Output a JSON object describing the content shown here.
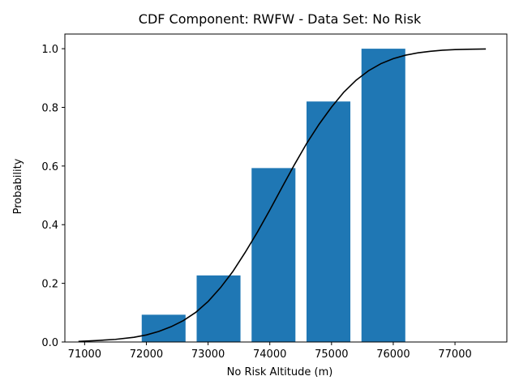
{
  "chart_data": {
    "type": "bar",
    "title": "CDF Component: RWFW - Data Set: No Risk",
    "xlabel": "No Risk Altitude (m)",
    "ylabel": "Probability",
    "xlim": [
      70680,
      77840
    ],
    "ylim": [
      0,
      1.05
    ],
    "xticks": [
      71000,
      72000,
      73000,
      74000,
      75000,
      76000,
      77000
    ],
    "xtick_labels": [
      "71000",
      "72000",
      "73000",
      "74000",
      "75000",
      "76000",
      "77000"
    ],
    "yticks": [
      0.0,
      0.2,
      0.4,
      0.6,
      0.8,
      1.0
    ],
    "ytick_labels": [
      "0.0",
      "0.2",
      "0.4",
      "0.6",
      "0.8",
      "1.0"
    ],
    "grid": false,
    "bar_color": "#1f77b4",
    "line_color": "#000000",
    "bars": {
      "x": [
        72280,
        73170,
        74060,
        74950,
        75840
      ],
      "width": 710,
      "values": [
        0.093,
        0.227,
        0.593,
        0.82,
        1.0
      ]
    },
    "line": {
      "name": "",
      "x": [
        70900,
        71200,
        71500,
        71800,
        72000,
        72200,
        72400,
        72600,
        72800,
        73000,
        73200,
        73400,
        73600,
        73800,
        74000,
        74200,
        74400,
        74600,
        74800,
        75000,
        75200,
        75400,
        75600,
        75800,
        76000,
        76200,
        76400,
        76600,
        76800,
        77000,
        77200,
        77500
      ],
      "y": [
        0.002,
        0.005,
        0.009,
        0.016,
        0.024,
        0.036,
        0.052,
        0.073,
        0.101,
        0.138,
        0.185,
        0.24,
        0.305,
        0.375,
        0.45,
        0.528,
        0.605,
        0.678,
        0.743,
        0.801,
        0.852,
        0.893,
        0.925,
        0.949,
        0.966,
        0.978,
        0.986,
        0.991,
        0.995,
        0.997,
        0.998,
        0.999
      ]
    }
  }
}
